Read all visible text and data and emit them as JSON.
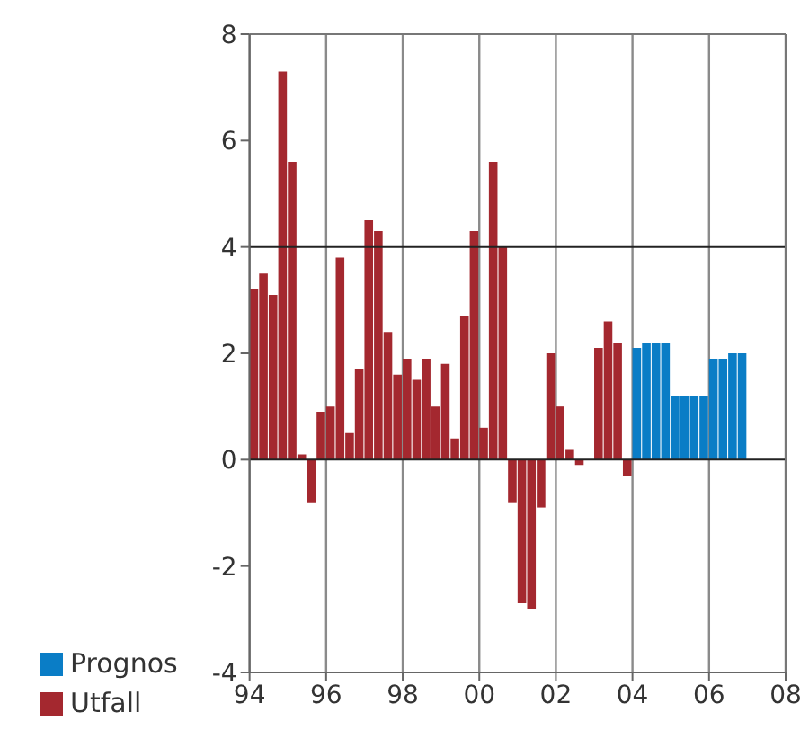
{
  "chart_data": {
    "type": "bar",
    "series": [
      {
        "name": "Utfall",
        "color": "#a4282f",
        "x": [
          1994.125,
          1994.375,
          1994.625,
          1994.875,
          1995.125,
          1995.375,
          1995.625,
          1995.875,
          1996.125,
          1996.375,
          1996.625,
          1996.875,
          1997.125,
          1997.375,
          1997.625,
          1997.875,
          1998.125,
          1998.375,
          1998.625,
          1998.875,
          1999.125,
          1999.375,
          1999.625,
          1999.875,
          2000.125,
          2000.375,
          2000.625,
          2000.875,
          2001.125,
          2001.375,
          2001.625,
          2001.875,
          2002.125,
          2002.375,
          2002.625,
          2002.875,
          2003.125,
          2003.375,
          2003.625,
          2003.875
        ],
        "values": [
          3.2,
          3.5,
          3.1,
          7.3,
          5.6,
          0.1,
          -0.8,
          0.9,
          1.0,
          3.8,
          0.5,
          1.7,
          4.5,
          4.3,
          2.4,
          1.6,
          1.9,
          1.5,
          1.9,
          1.0,
          1.8,
          0.4,
          2.7,
          4.3,
          0.6,
          5.6,
          4.0,
          -0.8,
          -2.7,
          -2.8,
          -0.9,
          2.0,
          1.0,
          0.2,
          -0.1,
          0,
          2.1,
          2.6,
          2.2,
          -0.3
        ]
      },
      {
        "name": "Prognos",
        "color": "#0a7dc6",
        "x": [
          2004.125,
          2004.375,
          2004.625,
          2004.875,
          2005.125,
          2005.375,
          2005.625,
          2005.875,
          2006.125,
          2006.375,
          2006.625,
          2006.875
        ],
        "values": [
          2.1,
          2.2,
          2.2,
          2.2,
          1.2,
          1.2,
          1.2,
          1.2,
          1.9,
          1.9,
          2.0,
          2.0
        ]
      }
    ],
    "xlim": [
      1994,
      2008
    ],
    "xticks": [
      {
        "value": 1994,
        "label": "94"
      },
      {
        "value": 1996,
        "label": "96"
      },
      {
        "value": 1998,
        "label": "98"
      },
      {
        "value": 2000,
        "label": "00"
      },
      {
        "value": 2002,
        "label": "02"
      },
      {
        "value": 2004,
        "label": "04"
      },
      {
        "value": 2006,
        "label": "06"
      },
      {
        "value": 2008,
        "label": "08"
      }
    ],
    "ylim": [
      -4,
      8
    ],
    "yticks": [
      -4,
      -2,
      0,
      2,
      4,
      6,
      8
    ],
    "ref_lines": [
      {
        "axis": "y",
        "value": 0,
        "color": "#222222"
      },
      {
        "axis": "y",
        "value": 4,
        "color": "#222222"
      }
    ],
    "grid": "x",
    "legend": "bottom left"
  }
}
